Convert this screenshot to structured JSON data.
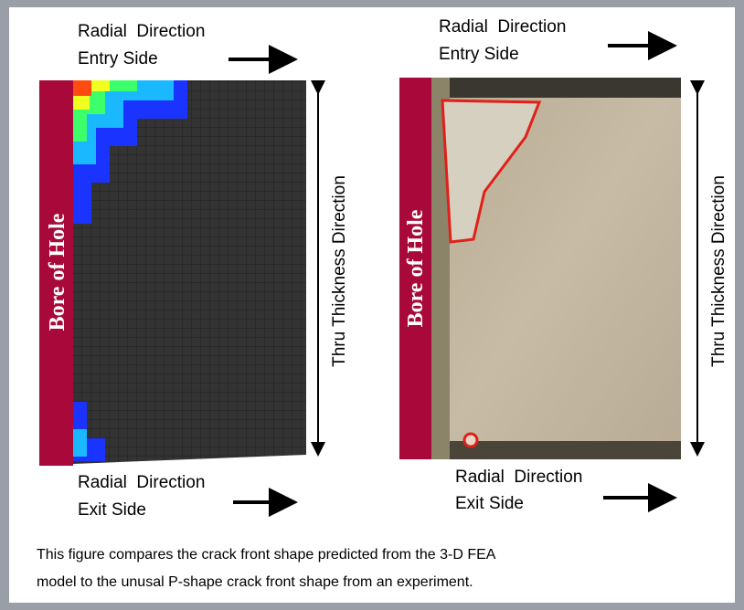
{
  "left_panel": {
    "top_label": {
      "line1": "Radial  Direction",
      "line2": "Entry Side"
    },
    "bore_label": "Bore of Hole",
    "side_label": "Thru Thickness Direction",
    "bottom_label": {
      "line1": "Radial  Direction",
      "line2": "Exit Side"
    }
  },
  "right_panel": {
    "top_label": {
      "line1": "Radial  Direction",
      "line2": "Entry Side"
    },
    "bore_label": "Bore of Hole",
    "side_label": "Thru Thickness Direction",
    "bottom_label": {
      "line1": "Radial  Direction",
      "line2": "Exit Side"
    }
  },
  "caption": {
    "line1": "This figure compares the crack front shape predicted from the 3-D FEA",
    "line2": "model to the unusal P-shape crack front shape from an experiment."
  }
}
